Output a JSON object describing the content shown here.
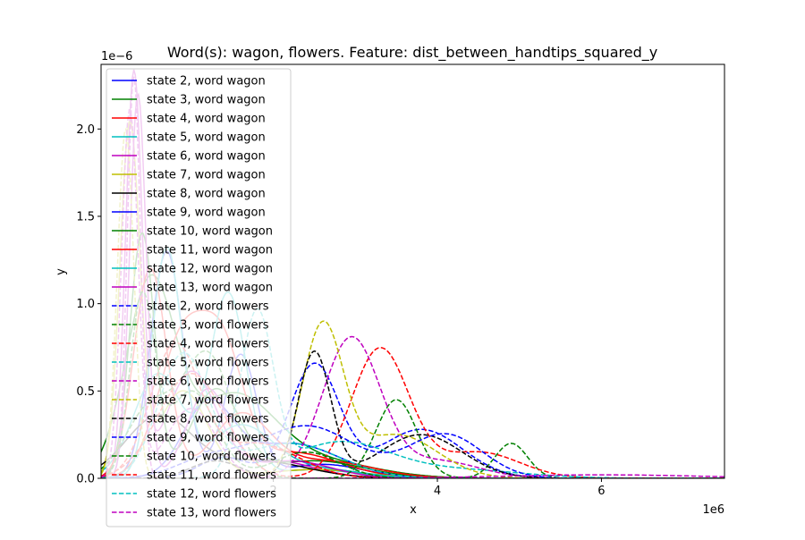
{
  "chart_data": {
    "type": "line",
    "title": "Word(s): wagon, flowers. Feature: dist_between_handtips_squared_y",
    "xlabel": "x",
    "ylabel": "y",
    "x_offset_label": "1e6",
    "y_offset_label": "1e−6",
    "x_unit": 1000000,
    "y_unit": 1e-06,
    "xlim": [
      -0.1,
      7.5
    ],
    "ylim": [
      0,
      2.37
    ],
    "x_ticks": [
      2,
      4,
      6
    ],
    "y_ticks": [
      0.0,
      0.5,
      1.0,
      1.5,
      2.0
    ],
    "x_tick_labels": [
      "2",
      "4",
      "6"
    ],
    "y_tick_labels": [
      "0.0",
      "0.5",
      "1.0",
      "1.5",
      "2.0"
    ],
    "legend_placement": "upper-left",
    "series": [
      {
        "name": "state 2, word wagon",
        "color": "#0000ff",
        "dash": "solid",
        "components": [
          [
            0.7,
            1.3,
            0.2
          ],
          [
            1.6,
            0.7,
            0.2
          ],
          [
            2.6,
            0.08,
            0.5
          ]
        ]
      },
      {
        "name": "state 3, word wagon",
        "color": "#008000",
        "dash": "solid",
        "components": [
          [
            0.5,
            1.1,
            0.3
          ],
          [
            1.5,
            0.45,
            0.5
          ],
          [
            2.5,
            0.1,
            0.7
          ]
        ]
      },
      {
        "name": "state 4, word wagon",
        "color": "#ff0000",
        "dash": "solid",
        "components": [
          [
            0.9,
            0.8,
            0.3
          ],
          [
            1.4,
            0.6,
            0.25
          ],
          [
            2.2,
            0.15,
            0.6
          ]
        ]
      },
      {
        "name": "state 5, word wagon",
        "color": "#00bfbf",
        "dash": "solid",
        "components": [
          [
            1.45,
            1.05,
            0.22
          ],
          [
            0.6,
            0.6,
            0.3
          ],
          [
            2.5,
            0.05,
            0.5
          ]
        ]
      },
      {
        "name": "state 6, word wagon",
        "color": "#bf00bf",
        "dash": "solid",
        "components": [
          [
            0.3,
            2.3,
            0.1
          ],
          [
            1.0,
            0.6,
            0.3
          ],
          [
            2.0,
            0.1,
            0.5
          ]
        ]
      },
      {
        "name": "state 7, word wagon",
        "color": "#bfbf00",
        "dash": "solid",
        "components": [
          [
            0.25,
            2.0,
            0.12
          ],
          [
            0.9,
            0.5,
            0.3
          ],
          [
            2.5,
            0.05,
            0.6
          ]
        ]
      },
      {
        "name": "state 8, word wagon",
        "color": "#000000",
        "dash": "solid",
        "components": [
          [
            0.6,
            0.35,
            0.4
          ],
          [
            1.8,
            0.1,
            0.6
          ]
        ]
      },
      {
        "name": "state 9, word wagon",
        "color": "#0000ff",
        "dash": "solid",
        "components": [
          [
            1.2,
            0.4,
            0.3
          ],
          [
            2.2,
            0.2,
            0.6
          ]
        ]
      },
      {
        "name": "state 10, word wagon",
        "color": "#008000",
        "dash": "solid",
        "components": [
          [
            0.4,
            1.4,
            0.15
          ],
          [
            1.3,
            0.5,
            0.3
          ],
          [
            2.5,
            0.1,
            0.6
          ]
        ]
      },
      {
        "name": "state 11, word wagon",
        "color": "#ff0000",
        "dash": "solid",
        "components": [
          [
            0.5,
            1.2,
            0.2
          ],
          [
            1.6,
            0.35,
            0.35
          ],
          [
            2.6,
            0.1,
            0.6
          ]
        ]
      },
      {
        "name": "state 12, word wagon",
        "color": "#00bfbf",
        "dash": "solid",
        "components": [
          [
            0.7,
            1.3,
            0.18
          ],
          [
            1.6,
            0.3,
            0.4
          ],
          [
            2.6,
            0.05,
            0.5
          ]
        ]
      },
      {
        "name": "state 13, word wagon",
        "color": "#bf00bf",
        "dash": "solid",
        "components": [
          [
            0.35,
            2.2,
            0.1
          ],
          [
            1.2,
            0.5,
            0.25
          ],
          [
            2.2,
            0.1,
            0.5
          ]
        ]
      },
      {
        "name": "state 2, word flowers",
        "color": "#0000ff",
        "dash": "dashed",
        "components": [
          [
            2.5,
            0.65,
            0.3
          ],
          [
            1.4,
            0.12,
            0.3
          ],
          [
            3.8,
            0.28,
            0.5
          ]
        ]
      },
      {
        "name": "state 3, word flowers",
        "color": "#008000",
        "dash": "dashed",
        "components": [
          [
            1.2,
            0.7,
            0.3
          ],
          [
            3.5,
            0.45,
            0.25
          ],
          [
            4.9,
            0.2,
            0.2
          ],
          [
            0.5,
            0.4,
            0.3
          ]
        ]
      },
      {
        "name": "state 4, word flowers",
        "color": "#ff0000",
        "dash": "dashed",
        "components": [
          [
            3.3,
            0.74,
            0.35
          ],
          [
            1.0,
            0.6,
            0.4
          ],
          [
            4.5,
            0.15,
            0.5
          ]
        ]
      },
      {
        "name": "state 5, word flowers",
        "color": "#00bfbf",
        "dash": "dashed",
        "components": [
          [
            1.8,
            0.92,
            0.2
          ],
          [
            2.8,
            0.2,
            0.6
          ],
          [
            4.2,
            0.05,
            0.8
          ]
        ]
      },
      {
        "name": "state 6, word flowers",
        "color": "#bf00bf",
        "dash": "dashed",
        "components": [
          [
            2.95,
            0.8,
            0.35
          ],
          [
            4.0,
            0.1,
            0.5
          ],
          [
            0.3,
            2.3,
            0.08
          ]
        ]
      },
      {
        "name": "state 7, word flowers",
        "color": "#bfbf00",
        "dash": "dashed",
        "components": [
          [
            2.6,
            0.85,
            0.25
          ],
          [
            3.5,
            0.25,
            0.5
          ],
          [
            0.2,
            2.0,
            0.1
          ]
        ]
      },
      {
        "name": "state 8, word flowers",
        "color": "#000000",
        "dash": "dashed",
        "components": [
          [
            2.5,
            0.72,
            0.2
          ],
          [
            3.8,
            0.25,
            0.5
          ],
          [
            1.3,
            0.1,
            0.3
          ]
        ]
      },
      {
        "name": "state 9, word flowers",
        "color": "#0000ff",
        "dash": "dashed",
        "components": [
          [
            2.4,
            0.3,
            0.6
          ],
          [
            4.1,
            0.25,
            0.45
          ],
          [
            1.2,
            0.1,
            0.4
          ]
        ]
      },
      {
        "name": "state 10, word flowers",
        "color": "#008000",
        "dash": "dashed",
        "components": [
          [
            1.0,
            0.5,
            0.3
          ],
          [
            2.4,
            0.15,
            0.4
          ],
          [
            0.4,
            1.0,
            0.15
          ]
        ]
      },
      {
        "name": "state 11, word flowers",
        "color": "#ff0000",
        "dash": "dashed",
        "components": [
          [
            0.8,
            0.75,
            0.3
          ],
          [
            1.8,
            0.2,
            0.5
          ]
        ]
      },
      {
        "name": "state 12, word flowers",
        "color": "#00bfbf",
        "dash": "dashed",
        "components": [
          [
            0.9,
            0.7,
            0.3
          ],
          [
            2.2,
            0.2,
            0.6
          ]
        ]
      },
      {
        "name": "state 13, word flowers",
        "color": "#bf00bf",
        "dash": "dashed",
        "components": [
          [
            0.25,
            2.1,
            0.1
          ],
          [
            1.0,
            0.4,
            0.3
          ],
          [
            6.0,
            0.02,
            1.2
          ]
        ]
      }
    ]
  }
}
